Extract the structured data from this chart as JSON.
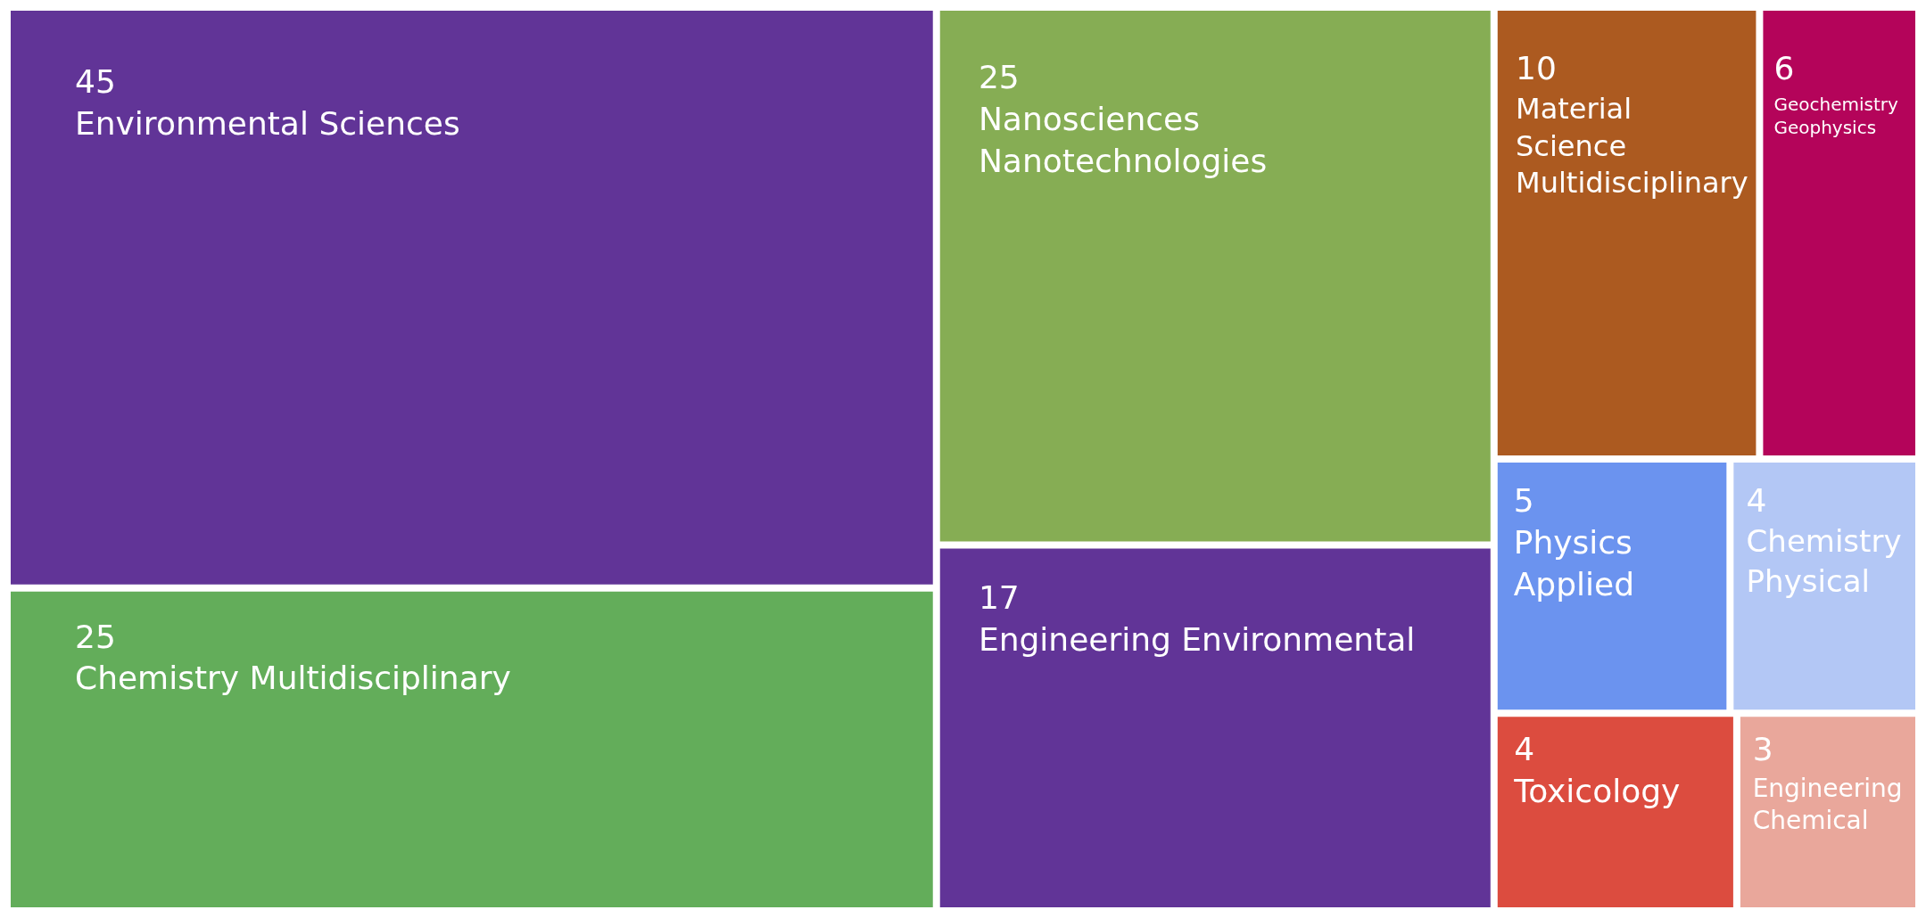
{
  "chart_data": {
    "type": "other",
    "categories": [
      "Environmental Sciences",
      "Chemistry Multidisciplinary",
      "Nanosciences Nanotechnologies",
      "Engineering Environmental",
      "Material Science Multidisciplinary",
      "Geochemistry Geophysics",
      "Physics Applied",
      "Chemistry Physical",
      "Toxicology",
      "Engineering Chemical"
    ],
    "values": [
      45,
      25,
      25,
      17,
      10,
      6,
      5,
      4,
      4,
      3
    ],
    "colors": [
      "#613497",
      "#63ad5a",
      "#86ad54",
      "#613497",
      "#ac5a20",
      "#b4045a",
      "#6b93ef",
      "#b3c7f5",
      "#dc4c3f",
      "#e9a79b"
    ],
    "data_labels": true
  }
}
